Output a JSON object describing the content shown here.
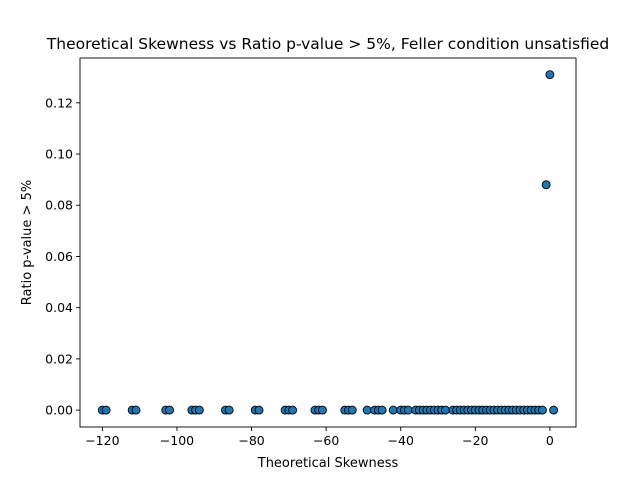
{
  "chart_data": {
    "type": "scatter",
    "title": "Theoretical Skewness vs Ratio p-value > 5%, Feller condition unsatisfied",
    "xlabel": "Theoretical Skewness",
    "ylabel": "Ratio p-value > 5%",
    "xlim": [
      -126,
      7
    ],
    "ylim": [
      -0.0066,
      0.1375
    ],
    "xticks": [
      -120,
      -100,
      -80,
      -60,
      -40,
      -20,
      0
    ],
    "yticks": [
      0.0,
      0.02,
      0.04,
      0.06,
      0.08,
      0.1,
      0.12
    ],
    "grid": false,
    "legend": "none",
    "marker_color": "#1f77b4",
    "marker_edge_color": "#000000",
    "x": [
      -120,
      -119,
      -112,
      -111,
      -103,
      -102,
      -96,
      -95,
      -94,
      -87,
      -86,
      -79,
      -78,
      -71,
      -70,
      -69,
      -63,
      -62,
      -61,
      -55,
      -54,
      -53,
      -49,
      -47,
      -46,
      -45,
      -42,
      -40,
      -39,
      -38,
      -36,
      -35,
      -34,
      -33,
      -32,
      -31,
      -30,
      -29,
      -28,
      -26,
      -25,
      -24,
      -23,
      -22,
      -21,
      -20,
      -19,
      -18,
      -17,
      -16,
      -15,
      -14,
      -13,
      -12,
      -11,
      -10,
      -9,
      -8,
      -7,
      -6,
      -5,
      -4,
      -3,
      -2,
      -1,
      0,
      1
    ],
    "y": [
      0,
      0,
      0,
      0,
      0,
      0,
      0,
      0,
      0,
      0,
      0,
      0,
      0,
      0,
      0,
      0,
      0,
      0,
      0,
      0,
      0,
      0,
      0,
      0,
      0,
      0,
      0,
      0,
      0,
      0,
      0,
      0,
      0,
      0,
      0,
      0,
      0,
      0,
      0,
      0,
      0,
      0,
      0,
      0,
      0,
      0,
      0,
      0,
      0,
      0,
      0,
      0,
      0,
      0,
      0,
      0,
      0,
      0,
      0,
      0,
      0,
      0,
      0,
      0,
      0.088,
      0.131,
      0
    ]
  }
}
